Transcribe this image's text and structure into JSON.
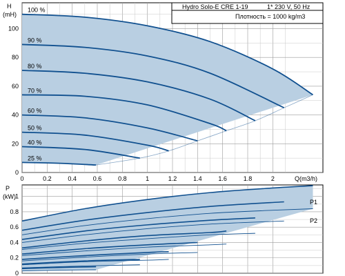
{
  "info": {
    "title": "Hydro Solo-E CRE 1-19",
    "supply": "1* 230 V, 50 Hz",
    "density": "Плотность = 1000 kg/m3"
  },
  "chart_data": [
    {
      "type": "line",
      "ylabel_top": "H",
      "ylabel_unit": "(mH)",
      "xlabel": "Q(m3/h)",
      "xlim": [
        0,
        2.4
      ],
      "ylim": [
        0,
        118
      ],
      "xticks": [
        0,
        0.2,
        0.4,
        0.6,
        0.8,
        1,
        1.2,
        1.4,
        1.6,
        1.8,
        2
      ],
      "xtick_labels": [
        "0",
        "0.2",
        "0.4",
        "0.6",
        "0.8",
        "1",
        "1.2",
        "1.4",
        "1.6",
        "1.8",
        "2"
      ],
      "yticks": [
        0,
        20,
        40,
        60,
        80,
        100
      ],
      "ytick_labels": [
        "0",
        "20",
        "40",
        "60",
        "80",
        "100"
      ],
      "grid": true,
      "fill_color": "#b9cfe2",
      "line_color": "#10508f",
      "envelope": {
        "x": [
          0,
          0.6,
          1.3,
          2.3
        ],
        "y": [
          110,
          5.5,
          18,
          54
        ]
      },
      "series": [
        {
          "name": "100 %",
          "x": [
            0,
            0.5,
            1.0,
            1.5,
            2.0,
            2.32
          ],
          "y": [
            110,
            108,
            102,
            91,
            72,
            54
          ]
        },
        {
          "name": "90 %",
          "x": [
            0,
            0.5,
            1.0,
            1.5,
            2.09
          ],
          "y": [
            89,
            87,
            81,
            69,
            45
          ]
        },
        {
          "name": "80 %",
          "x": [
            0,
            0.5,
            1.0,
            1.5,
            1.86
          ],
          "y": [
            71,
            69,
            63,
            51,
            36
          ]
        },
        {
          "name": "70 %",
          "x": [
            0,
            0.5,
            1.0,
            1.5,
            1.63
          ],
          "y": [
            54,
            53,
            47,
            34,
            29
          ]
        },
        {
          "name": "60 %",
          "x": [
            0,
            0.5,
            1.0,
            1.4
          ],
          "y": [
            40,
            38,
            31,
            22
          ]
        },
        {
          "name": "50 %",
          "x": [
            0,
            0.5,
            1.0,
            1.17
          ],
          "y": [
            28,
            26,
            19,
            15
          ]
        },
        {
          "name": "40 %",
          "x": [
            0,
            0.5,
            0.94
          ],
          "y": [
            18,
            16,
            10
          ]
        },
        {
          "name": "25 %",
          "x": [
            0,
            0.3,
            0.59
          ],
          "y": [
            7,
            6.4,
            5.2
          ]
        }
      ]
    },
    {
      "type": "line",
      "ylabel_top": "P",
      "ylabel_unit": "(kW)",
      "xlim": [
        0,
        2.4
      ],
      "ylim": [
        0,
        1.15
      ],
      "yticks": [
        0,
        0.2,
        0.4,
        0.6,
        0.8,
        1
      ],
      "ytick_labels": [
        "0",
        "0.2",
        "0.4",
        "0.6",
        "0.8",
        "1"
      ],
      "grid": true,
      "fill_color": "#b9cfe2",
      "line_color": "#10508f",
      "envelope": {
        "x": [
          0,
          2.32
        ],
        "upper": [
          0.68,
          1.14
        ],
        "lower": [
          0.06,
          0.84
        ]
      },
      "labels": {
        "p1": "P1",
        "p2": "P2"
      },
      "series": [
        {
          "name": "P1 100 %",
          "x": [
            0,
            0.5,
            1.0,
            1.5,
            2.0,
            2.32
          ],
          "y": [
            0.68,
            0.84,
            0.96,
            1.05,
            1.11,
            1.14
          ]
        },
        {
          "name": "P1 90 %",
          "x": [
            0,
            0.5,
            1.0,
            1.5,
            2.09
          ],
          "y": [
            0.56,
            0.69,
            0.79,
            0.87,
            0.93
          ]
        },
        {
          "name": "P1 80 %",
          "x": [
            0,
            0.5,
            1.0,
            1.5,
            1.86
          ],
          "y": [
            0.44,
            0.55,
            0.63,
            0.69,
            0.72
          ]
        },
        {
          "name": "P1 70 %",
          "x": [
            0,
            0.5,
            1.0,
            1.5,
            1.63
          ],
          "y": [
            0.33,
            0.42,
            0.49,
            0.53,
            0.55
          ]
        },
        {
          "name": "P1 60 %",
          "x": [
            0,
            0.5,
            1.0,
            1.4
          ],
          "y": [
            0.25,
            0.32,
            0.37,
            0.4
          ]
        },
        {
          "name": "P1 50 %",
          "x": [
            0,
            0.5,
            1.0,
            1.17
          ],
          "y": [
            0.18,
            0.23,
            0.27,
            0.28
          ]
        },
        {
          "name": "P1 40 %",
          "x": [
            0,
            0.5,
            0.94
          ],
          "y": [
            0.12,
            0.16,
            0.18
          ]
        },
        {
          "name": "P1 25 %",
          "x": [
            0,
            0.3,
            0.59
          ],
          "y": [
            0.06,
            0.075,
            0.085
          ]
        },
        {
          "name": "P2 100 %",
          "x": [
            0,
            0.5,
            1.0,
            1.5,
            2.0,
            2.32
          ],
          "y": [
            0.5,
            0.62,
            0.71,
            0.78,
            0.82,
            0.84
          ]
        },
        {
          "name": "P2 90 %",
          "x": [
            0,
            0.5,
            1.0,
            1.5,
            2.09
          ],
          "y": [
            0.4,
            0.5,
            0.58,
            0.64,
            0.68
          ]
        },
        {
          "name": "P2 80 %",
          "x": [
            0,
            0.5,
            1.0,
            1.5,
            1.86
          ],
          "y": [
            0.31,
            0.39,
            0.45,
            0.5,
            0.52
          ]
        },
        {
          "name": "P2 70 %",
          "x": [
            0,
            0.5,
            1.0,
            1.5,
            1.63
          ],
          "y": [
            0.23,
            0.29,
            0.34,
            0.37,
            0.38
          ]
        },
        {
          "name": "P2 60 %",
          "x": [
            0,
            0.5,
            1.0,
            1.4
          ],
          "y": [
            0.16,
            0.21,
            0.25,
            0.27
          ]
        },
        {
          "name": "P2 50 %",
          "x": [
            0,
            0.5,
            1.0,
            1.17
          ],
          "y": [
            0.11,
            0.15,
            0.17,
            0.18
          ]
        },
        {
          "name": "P2 40 %",
          "x": [
            0,
            0.5,
            0.94
          ],
          "y": [
            0.07,
            0.095,
            0.11
          ]
        },
        {
          "name": "P2 25 %",
          "x": [
            0,
            0.3,
            0.59
          ],
          "y": [
            0.03,
            0.04,
            0.045
          ]
        }
      ]
    }
  ]
}
